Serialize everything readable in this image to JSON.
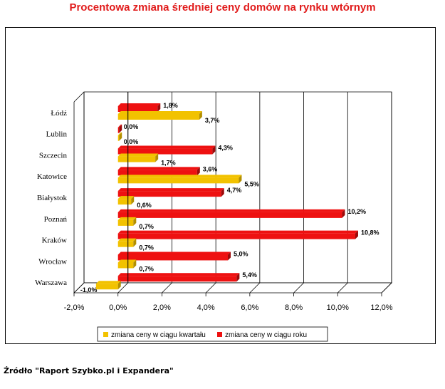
{
  "chart_data": {
    "type": "bar",
    "orientation": "horizontal",
    "title": "Procentowa zmiana średniej ceny domów na rynku wtórnym",
    "categories": [
      "Łódź",
      "Lublin",
      "Szczecin",
      "Katowice",
      "Białystok",
      "Poznań",
      "Kraków",
      "Wrocław",
      "Warszawa"
    ],
    "series": [
      {
        "name": "zmiana ceny w ciągu roku",
        "color": "#ee1111",
        "values": [
          1.8,
          0.0,
          4.3,
          3.6,
          4.7,
          10.2,
          10.8,
          5.0,
          5.4
        ],
        "labels": [
          "1,8%",
          "0,0%",
          "4,3%",
          "3,6%",
          "4,7%",
          "10,2%",
          "10,8%",
          "5,0%",
          "5,4%"
        ]
      },
      {
        "name": "zmiana ceny w ciągu kwartału",
        "color": "#f2c200",
        "values": [
          3.7,
          0.0,
          1.7,
          5.5,
          0.6,
          0.7,
          0.7,
          0.7,
          -1.0
        ],
        "labels": [
          "3,7%",
          "0,0%",
          "1,7%",
          "5,5%",
          "0,6%",
          "0,7%",
          "0,7%",
          "0,7%",
          "-1,0%"
        ]
      }
    ],
    "x_ticks": [
      "-2,0%",
      "0,0%",
      "2,0%",
      "4,0%",
      "6,0%",
      "8,0%",
      "10,0%",
      "12,0%"
    ],
    "xlim": [
      -2,
      12
    ],
    "grid": true,
    "legend_position": "bottom",
    "legend": [
      "zmiana ceny w ciągu kwartału",
      "zmiana ceny w ciągu roku"
    ]
  },
  "footer": {
    "source": "Źródło \"Raport Szybko.pl i Expandera\""
  }
}
